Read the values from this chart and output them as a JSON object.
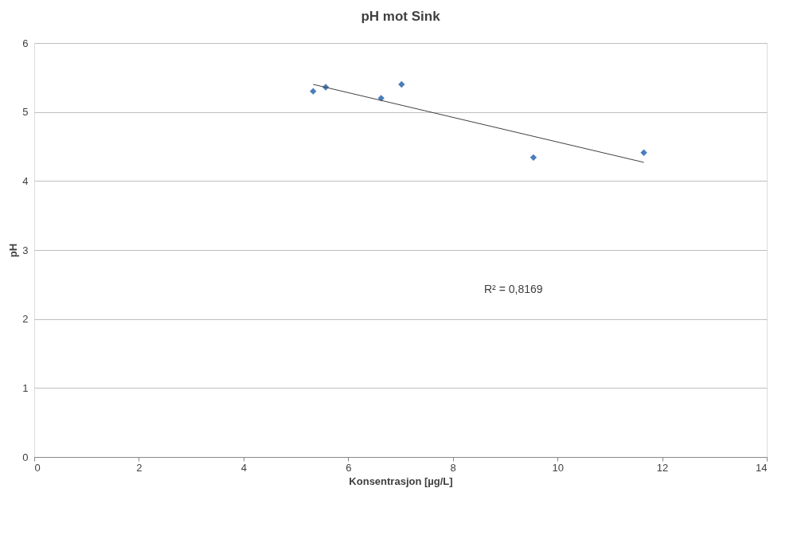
{
  "chart_data": {
    "type": "scatter",
    "title": "pH mot Sink",
    "xlabel": "Konsentrasjon [µg/L]",
    "ylabel": "pH",
    "xlim": [
      0,
      14
    ],
    "xticks": [
      0,
      2,
      4,
      6,
      8,
      10,
      12,
      14
    ],
    "ylim": [
      0,
      6
    ],
    "yticks": [
      0,
      1,
      2,
      3,
      4,
      5,
      6
    ],
    "grid": "y",
    "marker": "diamond",
    "annotations": [
      "R² = 0,8169"
    ],
    "series": [
      {
        "color": "#4a7ebb",
        "x": [
          5.33,
          5.57,
          6.63,
          7.02,
          9.54,
          11.65
        ],
        "values": [
          5.3,
          5.36,
          5.2,
          5.4,
          4.34,
          4.41
        ]
      },
      {
        "type": "line",
        "color": "#404040",
        "marker": "none",
        "line_style": "solid",
        "x": [
          5.33,
          11.65
        ],
        "values": [
          5.4,
          4.27
        ]
      }
    ]
  }
}
